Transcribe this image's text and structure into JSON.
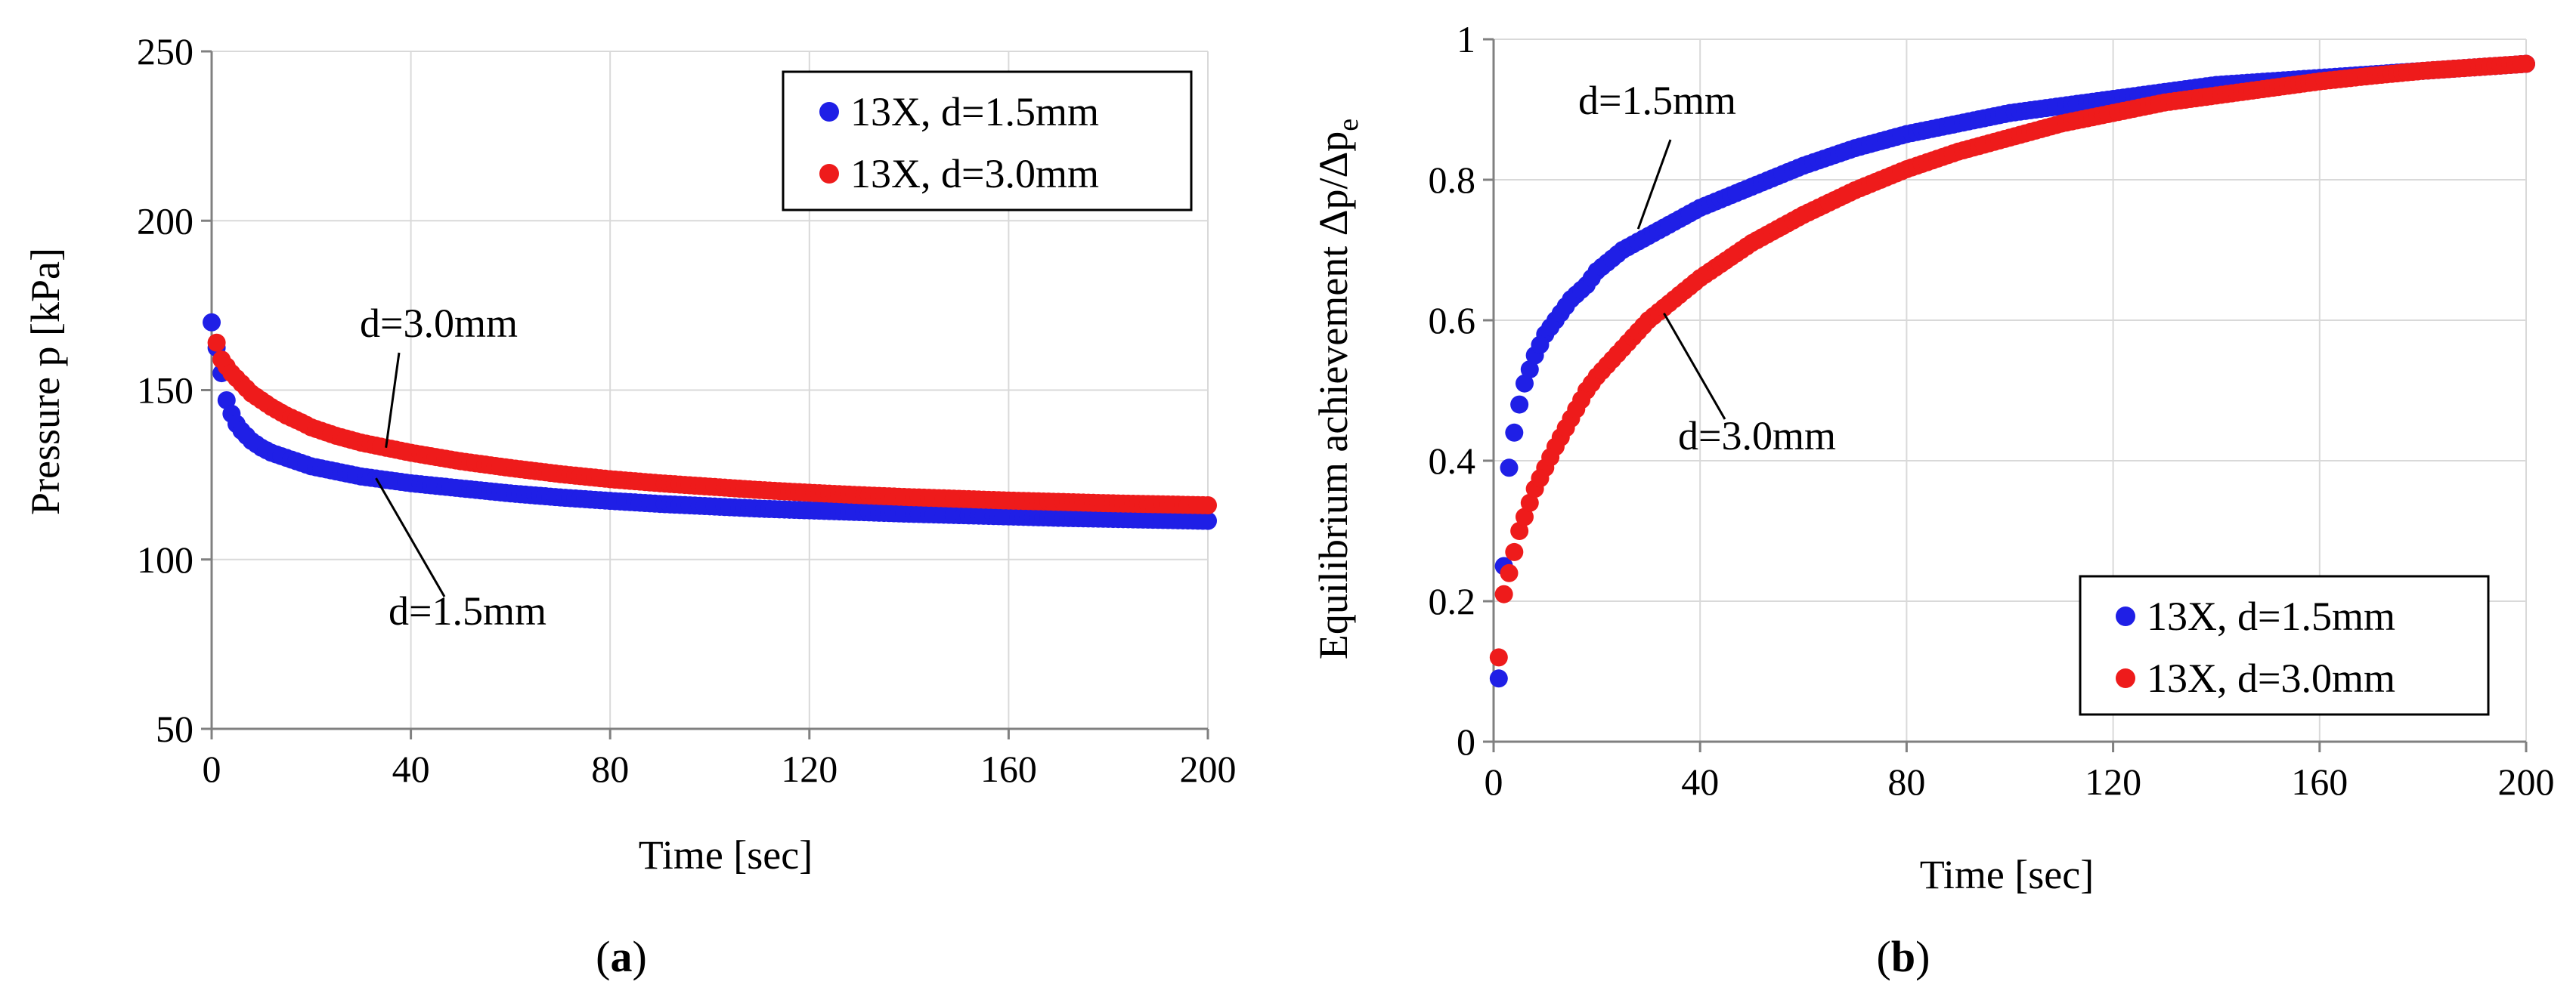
{
  "colors": {
    "series1": "#1f1fe6",
    "series2": "#ee1b1b"
  },
  "panel_a_label": {
    "open": "(",
    "letter": "a",
    "close": ")"
  },
  "panel_b_label": {
    "open": "(",
    "letter": "b",
    "close": ")"
  },
  "chart_data": [
    {
      "type": "scatter",
      "id": "a",
      "title": "",
      "xlabel": "Time [sec]",
      "ylabel": "Pressure  p [kPa]",
      "xlim": [
        0,
        200
      ],
      "ylim": [
        50,
        250
      ],
      "xticks": [
        0,
        40,
        80,
        120,
        160,
        200
      ],
      "yticks": [
        50,
        100,
        150,
        200,
        250
      ],
      "grid": true,
      "legend_position": "top-right",
      "series": [
        {
          "name": "13X, d=1.5mm",
          "color": "#1f1fe6",
          "x": [
            0,
            2,
            3,
            4,
            5,
            6,
            8,
            10,
            12,
            15,
            18,
            20,
            25,
            30,
            35,
            40,
            50,
            60,
            70,
            80,
            90,
            100,
            110,
            120,
            130,
            140,
            150,
            160,
            170,
            180,
            190,
            200
          ],
          "y": [
            170,
            155,
            147,
            143,
            140,
            138,
            135,
            133,
            131.5,
            130,
            128.5,
            127.5,
            126,
            124.5,
            123.5,
            122.5,
            121,
            119.5,
            118.3,
            117.3,
            116.4,
            115.7,
            115,
            114.5,
            114,
            113.5,
            113.1,
            112.7,
            112.3,
            112,
            111.7,
            111.4
          ]
        },
        {
          "name": "13X, d=3.0mm",
          "color": "#ee1b1b",
          "x": [
            1,
            2,
            3,
            4,
            6,
            8,
            10,
            12,
            15,
            18,
            20,
            25,
            30,
            35,
            40,
            50,
            60,
            70,
            80,
            90,
            100,
            110,
            120,
            130,
            140,
            150,
            160,
            170,
            180,
            190,
            200
          ],
          "y": [
            164,
            159,
            157,
            155,
            152,
            149,
            147,
            145,
            142.5,
            140.5,
            139,
            136.5,
            134.5,
            133,
            131.5,
            129,
            127,
            125.2,
            123.7,
            122.5,
            121.5,
            120.5,
            119.7,
            119,
            118.4,
            117.9,
            117.4,
            117,
            116.6,
            116.3,
            116
          ]
        }
      ],
      "annotations": [
        {
          "text": "d=3.0mm",
          "points_to": [
            35,
            133
          ]
        },
        {
          "text": "d=1.5mm",
          "points_to": [
            33,
            124
          ]
        }
      ]
    },
    {
      "type": "scatter",
      "id": "b",
      "title": "",
      "xlabel": "Time [sec]",
      "ylabel": "Equilibrium achievement  Δp/Δp",
      "ylabel_subscript": "e",
      "xlim": [
        0,
        200
      ],
      "ylim": [
        0,
        1
      ],
      "xticks": [
        0,
        40,
        80,
        120,
        160,
        200
      ],
      "yticks": [
        0,
        0.2,
        0.4,
        0.6,
        0.8,
        1
      ],
      "grid": true,
      "legend_position": "bottom-right",
      "series": [
        {
          "name": "13X, d=1.5mm",
          "color": "#1f1fe6",
          "x": [
            1,
            2,
            3,
            4,
            5,
            6,
            7,
            8,
            10,
            12,
            15,
            18,
            20,
            25,
            30,
            35,
            40,
            50,
            60,
            70,
            80,
            90,
            100,
            110,
            120,
            130,
            140,
            150,
            160,
            170,
            180,
            190,
            200
          ],
          "y": [
            0.09,
            0.25,
            0.39,
            0.44,
            0.48,
            0.51,
            0.53,
            0.55,
            0.58,
            0.6,
            0.63,
            0.65,
            0.67,
            0.7,
            0.72,
            0.74,
            0.76,
            0.79,
            0.82,
            0.845,
            0.865,
            0.88,
            0.895,
            0.905,
            0.915,
            0.925,
            0.935,
            0.94,
            0.945,
            0.95,
            0.955,
            0.96,
            0.965
          ]
        },
        {
          "name": "13X, d=3.0mm",
          "color": "#ee1b1b",
          "x": [
            1,
            2,
            3,
            4,
            5,
            6,
            7,
            8,
            10,
            12,
            15,
            18,
            20,
            25,
            30,
            35,
            40,
            50,
            60,
            70,
            80,
            90,
            100,
            110,
            120,
            130,
            140,
            150,
            160,
            170,
            180,
            190,
            200
          ],
          "y": [
            0.12,
            0.21,
            0.24,
            0.27,
            0.3,
            0.32,
            0.34,
            0.36,
            0.39,
            0.42,
            0.46,
            0.5,
            0.52,
            0.56,
            0.6,
            0.63,
            0.66,
            0.71,
            0.75,
            0.785,
            0.815,
            0.84,
            0.86,
            0.88,
            0.895,
            0.91,
            0.92,
            0.93,
            0.94,
            0.948,
            0.955,
            0.96,
            0.965
          ]
        }
      ],
      "annotations": [
        {
          "text": "d=1.5mm",
          "points_to": [
            28,
            0.73
          ]
        },
        {
          "text": "d=3.0mm",
          "points_to": [
            33,
            0.61
          ]
        }
      ]
    }
  ]
}
